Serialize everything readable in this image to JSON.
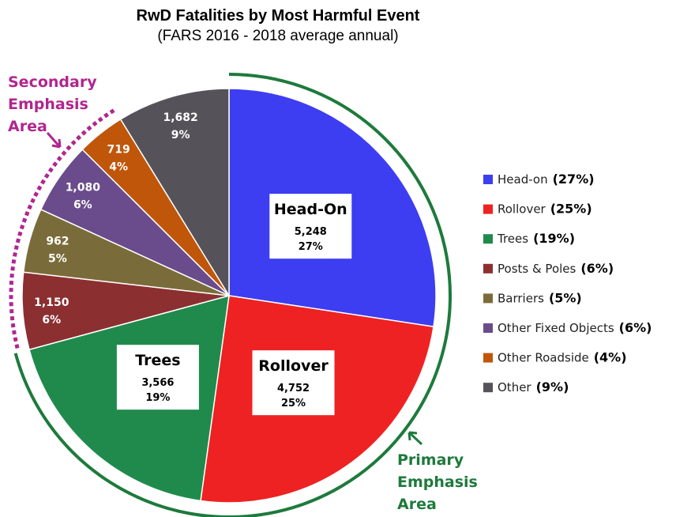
{
  "chart_data": {
    "type": "pie",
    "title": "RwD Fatalities by Most Harmful Event",
    "subtitle": "(FARS 2016 - 2018 average annual)",
    "categories": [
      "Head-on",
      "Rollover",
      "Trees",
      "Posts & Poles",
      "Barriers",
      "Other Fixed Objects",
      "Other Roadside",
      "Other"
    ],
    "slice_titles": [
      "Head-On",
      "Rollover",
      "Trees",
      null,
      null,
      null,
      null,
      null
    ],
    "values": [
      5248,
      4752,
      3566,
      1150,
      962,
      1080,
      719,
      1682
    ],
    "value_labels": [
      "5,248",
      "4,752",
      "3,566",
      "1,150",
      "962",
      "1,080",
      "719",
      "1,682"
    ],
    "percents": [
      27,
      25,
      19,
      6,
      5,
      6,
      4,
      9
    ],
    "percent_labels": [
      "27%",
      "25%",
      "19%",
      "6%",
      "5%",
      "6%",
      "4%",
      "9%"
    ],
    "legend_percent_labels": [
      "(27%)",
      "(25%)",
      "(19%)",
      "(6%)",
      "(5%)",
      "(6%)",
      "(4%)",
      "(9%)"
    ],
    "colors": [
      "#3d3df2",
      "#ee2222",
      "#1f8a4c",
      "#8c2f30",
      "#7a6c3a",
      "#6a4c8c",
      "#c0560a",
      "#55525a"
    ],
    "annotations": [
      {
        "lines": [
          "Secondary",
          "Emphasis",
          "Area"
        ],
        "color": "#b0268f"
      },
      {
        "lines": [
          "Primary",
          "Emphasis",
          "Area"
        ],
        "color": "#1e7a3c"
      }
    ]
  }
}
